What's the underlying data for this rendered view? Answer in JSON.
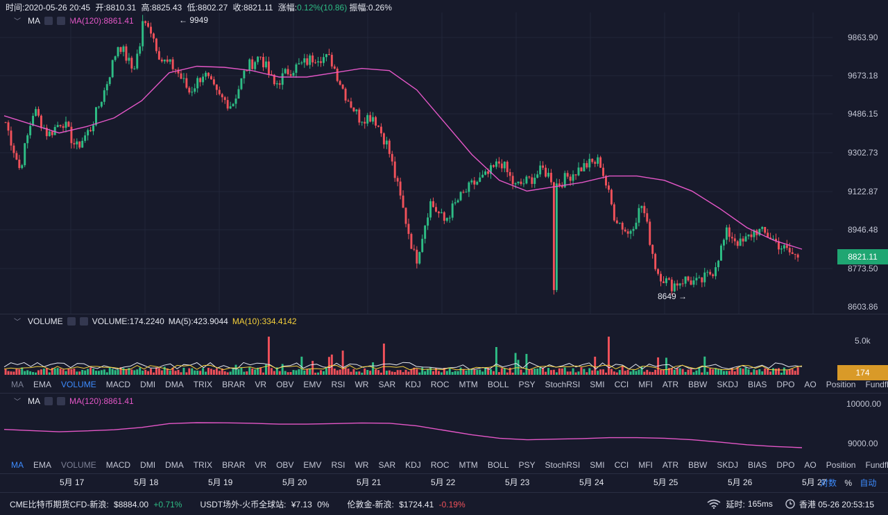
{
  "header": {
    "time": "时间:2020-05-26 20:45",
    "open": "开:8810.31",
    "high": "高:8825.43",
    "low": "低:8802.27",
    "close": "收:8821.11",
    "change_label": "涨幅:",
    "change_value": "0.12%(10.86)",
    "amplitude": "振幅:0.26%"
  },
  "main_indicator": {
    "name": "MA",
    "ma120": "MA(120):8861.41"
  },
  "price_axis": [
    "9863.90",
    "9673.18",
    "9486.15",
    "9302.73",
    "9122.87",
    "8946.48",
    "8773.50",
    "8603.86"
  ],
  "current_price": "8821.11",
  "annotations": {
    "high": "← 9949",
    "low": "8649 →"
  },
  "volume_indicator": {
    "name": "VOLUME",
    "volume": "VOLUME:174.2240",
    "ma5": "MA(5):423.9044",
    "ma10": "MA(10):334.4142"
  },
  "volume_axis": "5.0k",
  "current_volume": "174",
  "tabs": [
    "MA",
    "EMA",
    "VOLUME",
    "MACD",
    "DMI",
    "DMA",
    "TRIX",
    "BRAR",
    "VR",
    "OBV",
    "EMV",
    "RSI",
    "WR",
    "SAR",
    "KDJ",
    "ROC",
    "MTM",
    "BOLL",
    "PSY",
    "StochRSI",
    "SMI",
    "CCI",
    "MFI",
    "ATR",
    "BBW",
    "SKDJ",
    "BIAS",
    "DPO",
    "AO",
    "Position",
    "Fundflow"
  ],
  "sub_indicator": {
    "name": "MA",
    "ma120": "MA(120):8861.41"
  },
  "sub_axis": [
    "10000.00",
    "9000.00"
  ],
  "x_axis": [
    "5月 17",
    "5月 18",
    "5月 19",
    "5月 20",
    "5月 21",
    "5月 22",
    "5月 23",
    "5月 24",
    "5月 25",
    "5月 26",
    "5月 27"
  ],
  "scale_options": {
    "log": "对数",
    "pct": "%",
    "auto": "自动"
  },
  "footer": {
    "item1_name": "CME比特币期货CFD-新浪:",
    "item1_price": "$8884.00",
    "item1_change": "+0.71%",
    "item2_name": "USDT场外-火币全球站:",
    "item2_price": "¥7.13",
    "item2_change": "0%",
    "item3_name": "伦敦金-新浪:",
    "item3_price": "$1724.41",
    "item3_change": "-0.19%",
    "latency_label": "延时:",
    "latency_value": "165ms",
    "clock": "香港 05-26 20:53:15"
  },
  "colors": {
    "up": "#2ebd85",
    "down": "#f0515a",
    "ma120": "#e557c8",
    "ma5": "#e6e8f0",
    "ma10": "#f5d03a",
    "bg": "#171a2b",
    "accent": "#3d8bfd",
    "price_tag": "#1fa672",
    "vol_tag": "#d99a28"
  },
  "chart_data": {
    "type": "candlestick",
    "x": [
      "5月 17",
      "5月 18",
      "5月 19",
      "5月 20",
      "5月 21",
      "5月 22",
      "5月 23",
      "5月 24",
      "5月 25",
      "5月 26"
    ],
    "close_path": [
      9450,
      9230,
      9510,
      9390,
      9460,
      9330,
      9420,
      9600,
      9820,
      9690,
      9930,
      9740,
      9700,
      9590,
      9680,
      9570,
      9530,
      9700,
      9760,
      9620,
      9690,
      9720,
      9760,
      9740,
      9580,
      9470,
      9480,
      9340,
      9070,
      8800,
      9080,
      8990,
      9090,
      9160,
      9200,
      9270,
      9150,
      9180,
      9230,
      9160,
      9210,
      9250,
      9270,
      9020,
      8930,
      9070,
      8760,
      8690,
      8720,
      8700,
      8760,
      8940,
      8880,
      8950,
      8920,
      8860,
      8821
    ],
    "ma120": {
      "name": "MA(120)",
      "values": [
        9480,
        9440,
        9400,
        9430,
        9470,
        9550,
        9680,
        9710,
        9705,
        9690,
        9660,
        9660,
        9680,
        9700,
        9690,
        9600,
        9450,
        9300,
        9180,
        9130,
        9150,
        9170,
        9200,
        9200,
        9180,
        9130,
        9050,
        8960,
        8900,
        8860
      ]
    },
    "high": 9949,
    "low": 8649,
    "volume": {
      "last": 174.224,
      "ma5": 423.9044,
      "ma10": 334.4142
    },
    "ylim": [
      8560,
      9960
    ]
  }
}
